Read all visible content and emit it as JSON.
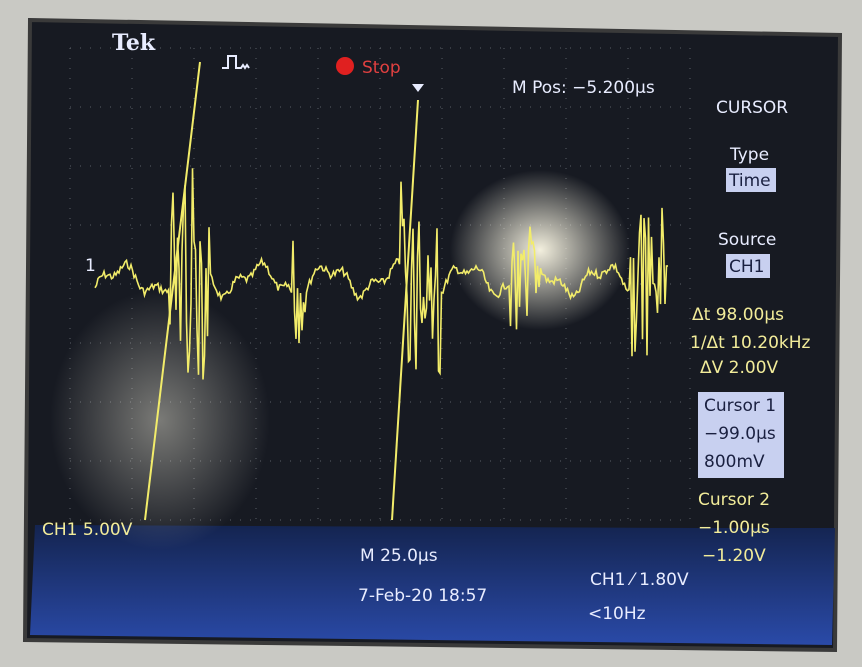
{
  "header": {
    "brand": "Tek",
    "status": "Stop",
    "m_pos": "M Pos: −5.200µs"
  },
  "channel_marker": "1",
  "menu": {
    "title": "CURSOR",
    "type_label": "Type",
    "type_value": "Time",
    "source_label": "Source",
    "source_value": "CH1",
    "delta_t": "Δt 98.00µs",
    "inv_delta_t": "1/Δt 10.20kHz",
    "delta_v": "ΔV 2.00V",
    "cursor1": {
      "label": "Cursor 1",
      "time": "−99.0µs",
      "value": "800mV"
    },
    "cursor2": {
      "label": "Cursor 2",
      "time": "−1.00µs",
      "value": "−1.20V"
    }
  },
  "footer": {
    "ch1_scale": "CH1 5.00V",
    "timebase": "M 25.0µs",
    "datetime": "7-Feb-20 18:57",
    "trigger": "CH1 ⁄ 1.80V",
    "frequency": "<10Hz"
  }
}
